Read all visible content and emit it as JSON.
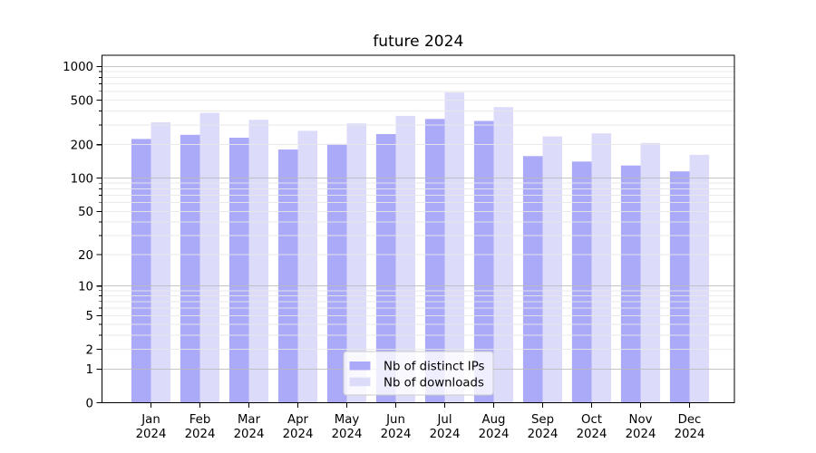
{
  "chart_data": {
    "type": "bar",
    "title": "future 2024",
    "months": [
      "Jan",
      "Feb",
      "Mar",
      "Apr",
      "May",
      "Jun",
      "Jul",
      "Aug",
      "Sep",
      "Oct",
      "Nov",
      "Dec"
    ],
    "year_label": "2024",
    "series": [
      {
        "name": "Nb of distinct IPs",
        "color": "#aaaaf8",
        "values": [
          225,
          245,
          231,
          181,
          203,
          249,
          340,
          326,
          158,
          141,
          130,
          115
        ]
      },
      {
        "name": "Nb of downloads",
        "color": "#dcdcfa",
        "values": [
          317,
          385,
          334,
          266,
          310,
          362,
          588,
          434,
          237,
          253,
          207,
          162
        ]
      }
    ],
    "yscale": "log1p",
    "ylim": [
      0,
      1261
    ],
    "yticks": [
      0,
      1,
      2,
      5,
      10,
      20,
      50,
      100,
      200,
      500,
      1000
    ],
    "grid": "on",
    "legend_position": "lower center"
  },
  "colors": {
    "background": "#ffffff",
    "spine": "#000000",
    "grid_major": "#bbbbbb",
    "grid_minor": "#e8e8e8",
    "legend_border": "#cccccc",
    "legend_fill": "rgba(255,255,255,0.8)"
  }
}
